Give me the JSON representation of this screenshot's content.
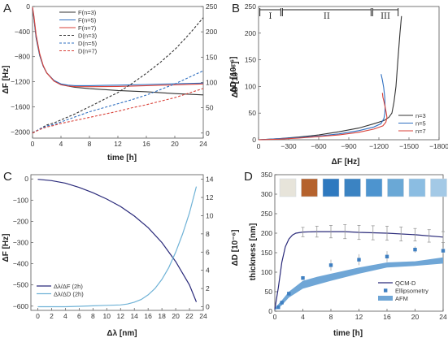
{
  "chart_data": [
    {
      "panel": "A",
      "type": "line",
      "xlabel": "time [h]",
      "ylabel": "ΔF [Hz]",
      "y2label": "ΔD [10⁻⁶]",
      "xlim": [
        0,
        24
      ],
      "ylim": [
        -2100,
        0
      ],
      "y2lim": [
        -10,
        250
      ],
      "xticks": [
        0,
        4,
        8,
        12,
        16,
        20,
        24
      ],
      "yticks": [
        0,
        -400,
        -800,
        -1200,
        -1600,
        -2000
      ],
      "y2ticks": [
        0,
        50,
        100,
        150,
        200,
        250
      ],
      "colors": {
        "n3": "#333333",
        "n5": "#2f6fc0",
        "n7": "#d9423a"
      },
      "legend": {
        "position": "upper-center",
        "entries": [
          "F(n=3)",
          "F(n=5)",
          "F(n=7)",
          "D(n=3)",
          "D(n=5)",
          "D(n=7)"
        ]
      },
      "series": [
        {
          "name": "F(n=3)",
          "axis": "y",
          "dash": false,
          "x": [
            0,
            0.2,
            0.5,
            1,
            1.5,
            2,
            3,
            4,
            5,
            6,
            8,
            12,
            16,
            20,
            24
          ],
          "y": [
            -30,
            -200,
            -500,
            -780,
            -950,
            -1060,
            -1180,
            -1240,
            -1270,
            -1290,
            -1310,
            -1340,
            -1360,
            -1390,
            -1410
          ]
        },
        {
          "name": "F(n=5)",
          "axis": "y",
          "dash": false,
          "x": [
            0,
            0.2,
            0.5,
            1,
            1.5,
            2,
            3,
            4,
            5,
            6,
            8,
            12,
            16,
            20,
            24
          ],
          "y": [
            -20,
            -180,
            -480,
            -770,
            -950,
            -1060,
            -1180,
            -1235,
            -1255,
            -1262,
            -1262,
            -1255,
            -1245,
            -1232,
            -1222
          ]
        },
        {
          "name": "F(n=7)",
          "axis": "y",
          "dash": false,
          "x": [
            0,
            0.2,
            0.5,
            1,
            1.5,
            2,
            3,
            4,
            5,
            6,
            8,
            12,
            16,
            20,
            24
          ],
          "y": [
            -10,
            -160,
            -450,
            -750,
            -940,
            -1060,
            -1190,
            -1250,
            -1270,
            -1278,
            -1280,
            -1275,
            -1262,
            -1250,
            -1235
          ]
        },
        {
          "name": "D(n=3)",
          "axis": "y2",
          "dash": true,
          "x": [
            0,
            1,
            2,
            3,
            4,
            6,
            8,
            10,
            12,
            14,
            16,
            18,
            20,
            22,
            24
          ],
          "y": [
            0,
            8,
            16,
            20,
            26,
            38,
            52,
            66,
            80,
            98,
            118,
            140,
            165,
            195,
            228
          ]
        },
        {
          "name": "D(n=5)",
          "axis": "y2",
          "dash": true,
          "x": [
            0,
            1,
            2,
            3,
            4,
            6,
            8,
            10,
            12,
            14,
            16,
            18,
            20,
            22,
            24
          ],
          "y": [
            0,
            8,
            14,
            17,
            22,
            32,
            42,
            50,
            58,
            66,
            75,
            86,
            97,
            110,
            123
          ]
        },
        {
          "name": "D(n=7)",
          "axis": "y2",
          "dash": true,
          "x": [
            0,
            1,
            2,
            3,
            4,
            6,
            8,
            10,
            12,
            14,
            16,
            18,
            20,
            22,
            24
          ],
          "y": [
            0,
            7,
            12,
            15,
            19,
            25,
            31,
            37,
            43,
            50,
            56,
            63,
            70,
            79,
            88
          ]
        }
      ]
    },
    {
      "panel": "B",
      "type": "line",
      "xlabel": "ΔF [Hz]",
      "ylabel": "ΔD [10⁻⁶]",
      "xlim": [
        0,
        -1800
      ],
      "ylim": [
        0,
        250
      ],
      "xticks": [
        0,
        -300,
        -600,
        -900,
        -1200,
        -1500,
        -1800
      ],
      "yticks": [
        0,
        50,
        100,
        150,
        200,
        250
      ],
      "regions": [
        {
          "label": "I",
          "x_start": -5,
          "x_end": -230
        },
        {
          "label": "II",
          "x_start": -230,
          "x_end": -1130
        },
        {
          "label": "III",
          "x_start": -1130,
          "x_end": -1400
        }
      ],
      "legend": {
        "position": "lower-right",
        "entries": [
          "n=3",
          "n=5",
          "n=7"
        ]
      },
      "series": [
        {
          "name": "n=3",
          "x": [
            0,
            -200,
            -400,
            -600,
            -800,
            -1000,
            -1150,
            -1250,
            -1300,
            -1330,
            -1350,
            -1370,
            -1390,
            -1410,
            -1425
          ],
          "y": [
            0,
            2,
            5,
            9,
            15,
            22,
            30,
            36,
            42,
            50,
            70,
            100,
            150,
            200,
            232
          ]
        },
        {
          "name": "n=5",
          "x": [
            0,
            -200,
            -400,
            -600,
            -800,
            -1000,
            -1150,
            -1220,
            -1250,
            -1260,
            -1262,
            -1258,
            -1248,
            -1235,
            -1222
          ],
          "y": [
            0,
            2,
            4,
            7,
            11,
            17,
            24,
            30,
            40,
            50,
            62,
            80,
            98,
            112,
            123
          ]
        },
        {
          "name": "n=7",
          "x": [
            0,
            -200,
            -400,
            -600,
            -800,
            -1000,
            -1150,
            -1240,
            -1270,
            -1280,
            -1272,
            -1262,
            -1250,
            -1240,
            -1235
          ],
          "y": [
            0,
            1,
            3,
            6,
            9,
            14,
            20,
            26,
            33,
            42,
            52,
            62,
            72,
            80,
            88
          ]
        }
      ]
    },
    {
      "panel": "C",
      "type": "line",
      "xlabel": "Δλ [nm]",
      "ylabel": "ΔF [Hz]",
      "y2label": "ΔD [10⁻⁶]",
      "xlim": [
        -1,
        24
      ],
      "ylim": [
        -620,
        20
      ],
      "y2lim": [
        -0.4,
        14.5
      ],
      "xticks": [
        0,
        2,
        4,
        6,
        8,
        10,
        12,
        14,
        16,
        18,
        20,
        22,
        24
      ],
      "yticks": [
        0,
        -100,
        -200,
        -300,
        -400,
        -500,
        -600
      ],
      "y2ticks": [
        0,
        2,
        4,
        6,
        8,
        10,
        12,
        14
      ],
      "colors": {
        "dF": "#2a2a7a",
        "dD": "#6fb2d6"
      },
      "legend": {
        "position": "lower-left",
        "entries": [
          "Δλ/ΔF (2h)",
          "Δλ/ΔD (2h)"
        ]
      },
      "series": [
        {
          "name": "Δλ/ΔF (2h)",
          "axis": "y",
          "x": [
            0,
            2,
            4,
            6,
            8,
            10,
            12,
            14,
            16,
            18,
            20,
            22,
            23
          ],
          "y": [
            -2,
            -8,
            -20,
            -40,
            -65,
            -95,
            -130,
            -175,
            -230,
            -300,
            -390,
            -500,
            -580
          ]
        },
        {
          "name": "Δλ/ΔD (2h)",
          "axis": "y2",
          "x": [
            0,
            2,
            4,
            6,
            8,
            10,
            12,
            13,
            14,
            15,
            16,
            17,
            18,
            19,
            20,
            21,
            22,
            23
          ],
          "y": [
            0,
            0,
            0,
            0.05,
            0.1,
            0.15,
            0.2,
            0.3,
            0.5,
            0.8,
            1.3,
            2.0,
            3.0,
            4.3,
            6.0,
            8.0,
            10.3,
            13.2
          ]
        }
      ]
    },
    {
      "panel": "D",
      "type": "line",
      "xlabel": "time [h]",
      "ylabel": "thickness [nm]",
      "xlim": [
        0,
        24
      ],
      "ylim": [
        0,
        350
      ],
      "xticks": [
        0,
        4,
        8,
        12,
        16,
        20,
        24
      ],
      "yticks": [
        0,
        50,
        100,
        150,
        200,
        250,
        300,
        350
      ],
      "colors": {
        "qcmd": "#2a2a7a",
        "ellipsometry": "#3f7fc1",
        "afm": "#6fa6d6"
      },
      "legend": {
        "position": "lower-right",
        "entries": [
          "QCM-D",
          "Ellipsometry",
          "AFM"
        ]
      },
      "thumbnails": [
        "#e7e4da",
        "#b5622d",
        "#2e79bf",
        "#3b83c2",
        "#4d94cf",
        "#6aa8d6",
        "#8bbde2",
        "#a3c9e6"
      ],
      "series": [
        {
          "name": "QCM-D",
          "x": [
            0,
            0.5,
            1,
            1.5,
            2,
            2.5,
            3,
            4,
            6,
            8,
            10,
            12,
            16,
            20,
            24
          ],
          "y": [
            5,
            60,
            125,
            165,
            185,
            195,
            200,
            203,
            204,
            204,
            204,
            202,
            200,
            196,
            190
          ]
        },
        {
          "name": "QCM-D error",
          "x": [
            4,
            6,
            8,
            10,
            12,
            14,
            16,
            18,
            20,
            22,
            24
          ],
          "y": [
            203,
            204,
            204,
            204,
            202,
            201,
            200,
            198,
            196,
            193,
            190
          ],
          "err": [
            12,
            14,
            16,
            18,
            18,
            18,
            18,
            18,
            16,
            16,
            14
          ]
        },
        {
          "name": "Ellipsometry",
          "x": [
            0.5,
            1,
            2,
            4,
            8,
            12,
            16,
            20,
            24
          ],
          "y": [
            10,
            22,
            45,
            85,
            118,
            132,
            140,
            158,
            155
          ],
          "err": [
            3,
            4,
            5,
            5,
            14,
            14,
            14,
            8,
            8
          ]
        },
        {
          "name": "AFM",
          "x": [
            0,
            1,
            2,
            4,
            6,
            8,
            12,
            16,
            20,
            24
          ],
          "y_low": [
            2,
            15,
            35,
            58,
            68,
            78,
            96,
            112,
            116,
            122
          ],
          "y_high": [
            8,
            28,
            50,
            78,
            88,
            96,
            112,
            125,
            128,
            138
          ]
        }
      ]
    }
  ],
  "panels": {
    "a": {
      "letter": "A",
      "xlabel": "time [h]",
      "ylabel": "ΔF [Hz]",
      "y2label": "ΔD [10⁻⁶]"
    },
    "b": {
      "letter": "B",
      "xlabel": "ΔF [Hz]",
      "ylabel": "ΔD [10⁻⁶]"
    },
    "c": {
      "letter": "C",
      "xlabel": "Δλ [nm]",
      "ylabel": "ΔF [Hz]",
      "y2label": "ΔD [10⁻⁶]"
    },
    "d": {
      "letter": "D",
      "xlabel": "time [h]",
      "ylabel": "thickness [nm]"
    }
  }
}
